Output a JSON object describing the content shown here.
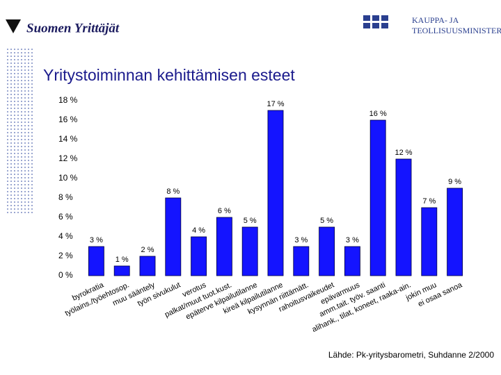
{
  "logos": {
    "left": "Suomen Yrittäjät",
    "right": [
      "KAUPPA- JA",
      "TEOLLISUUSMINISTERIÖ"
    ]
  },
  "chart_data": {
    "type": "bar",
    "title": "Yritystoiminnan kehittämisen esteet",
    "source": "Lähde: Pk-yritysbarometri, Suhdanne 2/2000",
    "categories": [
      "byrokratia",
      "työlains./työehtosop.",
      "muu sääntely",
      "työn sivukulut",
      "verotus",
      "palkat/muut tuot.kust.",
      "epäterve kilpailutilanne",
      "kireä kilpailutilanne",
      "kysynnän riittämätt.",
      "rahoitusvaikeudet",
      "epävarmuus",
      "amm.tait. työv. saanti",
      "alihank., tilat, koneet, raaka-ain.",
      "jokin muu",
      "ei osaa sanoa"
    ],
    "values": [
      3,
      1,
      2,
      8,
      4,
      6,
      5,
      17,
      3,
      5,
      3,
      16,
      12,
      7,
      9
    ],
    "value_labels": [
      "3 %",
      "1 %",
      "2 %",
      "8 %",
      "4 %",
      "6 %",
      "5 %",
      "17 %",
      "3 %",
      "5 %",
      "3 %",
      "16 %",
      "12 %",
      "7 %",
      "9 %"
    ],
    "color": "#1414ff",
    "ylim": [
      0,
      18
    ],
    "yticks": [
      {
        "value": 0,
        "label": "0 %"
      },
      {
        "value": 2,
        "label": "2 %"
      },
      {
        "value": 4,
        "label": "4 %"
      },
      {
        "value": 6,
        "label": "6 %"
      },
      {
        "value": 8,
        "label": "8 %"
      },
      {
        "value": 10,
        "label": "10 %"
      },
      {
        "value": 12,
        "label": "12 %"
      },
      {
        "value": 14,
        "label": "14 %"
      },
      {
        "value": 16,
        "label": "16 %"
      },
      {
        "value": 18,
        "label": "18 %"
      }
    ],
    "grid": false
  }
}
